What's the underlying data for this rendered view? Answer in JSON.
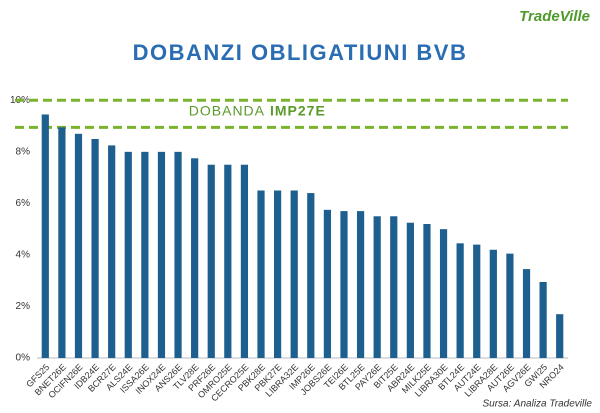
{
  "chart_data": {
    "type": "bar",
    "brand": "TradeVille",
    "title": "DOBANZI OBLIGATIUNI BVB",
    "source": "Sursa: Analiza Tradeville",
    "annotation": {
      "text": "DOBANDA",
      "highlight": "IMP27E"
    },
    "reference_lines": [
      10,
      8.95
    ],
    "reference_color": "#7ab42e",
    "color": "#1d5f8e",
    "categories": [
      "GFS25",
      "BNET26E",
      "OCIFN26E",
      "IDB24E",
      "BCR27E",
      "ALS24E",
      "ISSA26E",
      "INOX24E",
      "ANS26E",
      "TLV28E",
      "PRF26E",
      "OMRO25E",
      "CECRO25E",
      "PBK28E",
      "PBK27E",
      "LIBRA32E",
      "IMP26E",
      "JOBS26E",
      "TEI26E",
      "BTL25E",
      "PAY26E",
      "BIT25E",
      "ABR24E",
      "MILK25E",
      "LIBRA30E",
      "BTL24E",
      "AUT24E",
      "LIBRA28E",
      "AUT26E",
      "AGV26E",
      "GWI25",
      "NRO24"
    ],
    "values": [
      9.45,
      8.95,
      8.7,
      8.5,
      8.25,
      8.0,
      8.0,
      8.0,
      8.0,
      7.75,
      7.5,
      7.5,
      7.5,
      6.5,
      6.5,
      6.5,
      6.4,
      5.75,
      5.7,
      5.7,
      5.5,
      5.5,
      5.25,
      5.2,
      5.0,
      4.45,
      4.4,
      4.2,
      4.05,
      3.45,
      2.95,
      1.7
    ],
    "ylim": [
      0,
      10.4
    ],
    "yticks": [
      {
        "value": 0,
        "label": "0%"
      },
      {
        "value": 2,
        "label": "2%"
      },
      {
        "value": 4,
        "label": "4%"
      },
      {
        "value": 6,
        "label": "6%"
      },
      {
        "value": 8,
        "label": "8%"
      },
      {
        "value": 10,
        "label": "10%"
      }
    ],
    "grid": false
  }
}
